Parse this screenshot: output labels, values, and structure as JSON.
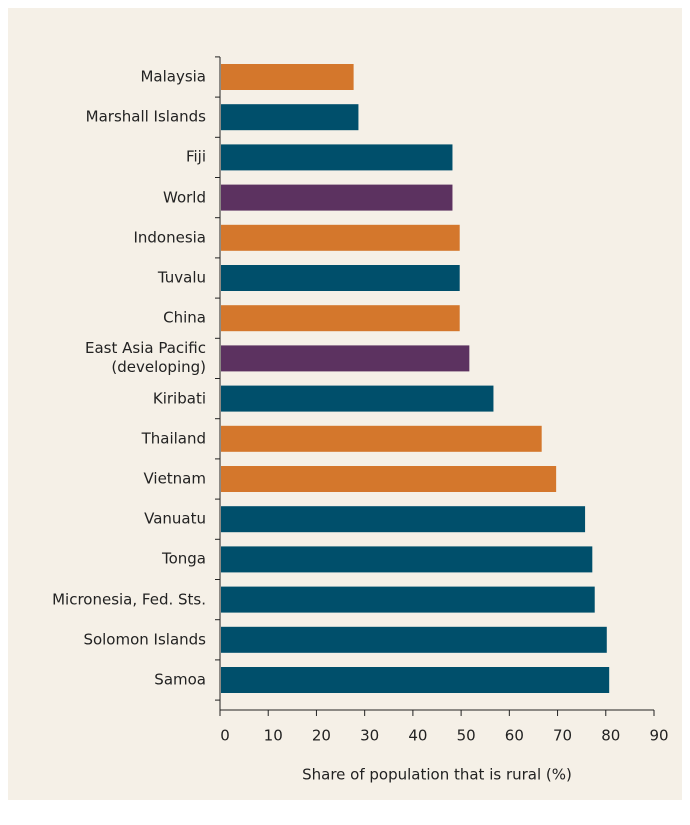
{
  "chart_data": {
    "type": "bar",
    "orientation": "horizontal",
    "x_label": "Share of population that is rural (%)",
    "categories": [
      "Malaysia",
      "Marshall Islands",
      "Fiji",
      "World",
      "Indonesia",
      "Tuvalu",
      "China",
      "East Asia Pacific\n(developing)",
      "Kiribati",
      "Thailand",
      "Vietnam",
      "Vanuatu",
      "Tonga",
      "Micronesia, Fed. Sts.",
      "Solomon Islands",
      "Samoa"
    ],
    "values": [
      27.5,
      28.5,
      48,
      48,
      49.5,
      49.5,
      49.5,
      51.5,
      56.5,
      66.5,
      69.5,
      75.5,
      77,
      77.5,
      80,
      80.5
    ],
    "colors": [
      "#d4772c",
      "#004f6b",
      "#004f6b",
      "#5c3260",
      "#d4772c",
      "#004f6b",
      "#d4772c",
      "#5c3260",
      "#004f6b",
      "#d4772c",
      "#d4772c",
      "#004f6b",
      "#004f6b",
      "#004f6b",
      "#004f6b",
      "#004f6b"
    ],
    "xlim": [
      0,
      90
    ],
    "xticks": [
      0,
      10,
      20,
      30,
      40,
      50,
      60,
      70,
      80,
      90
    ],
    "grid": false
  }
}
